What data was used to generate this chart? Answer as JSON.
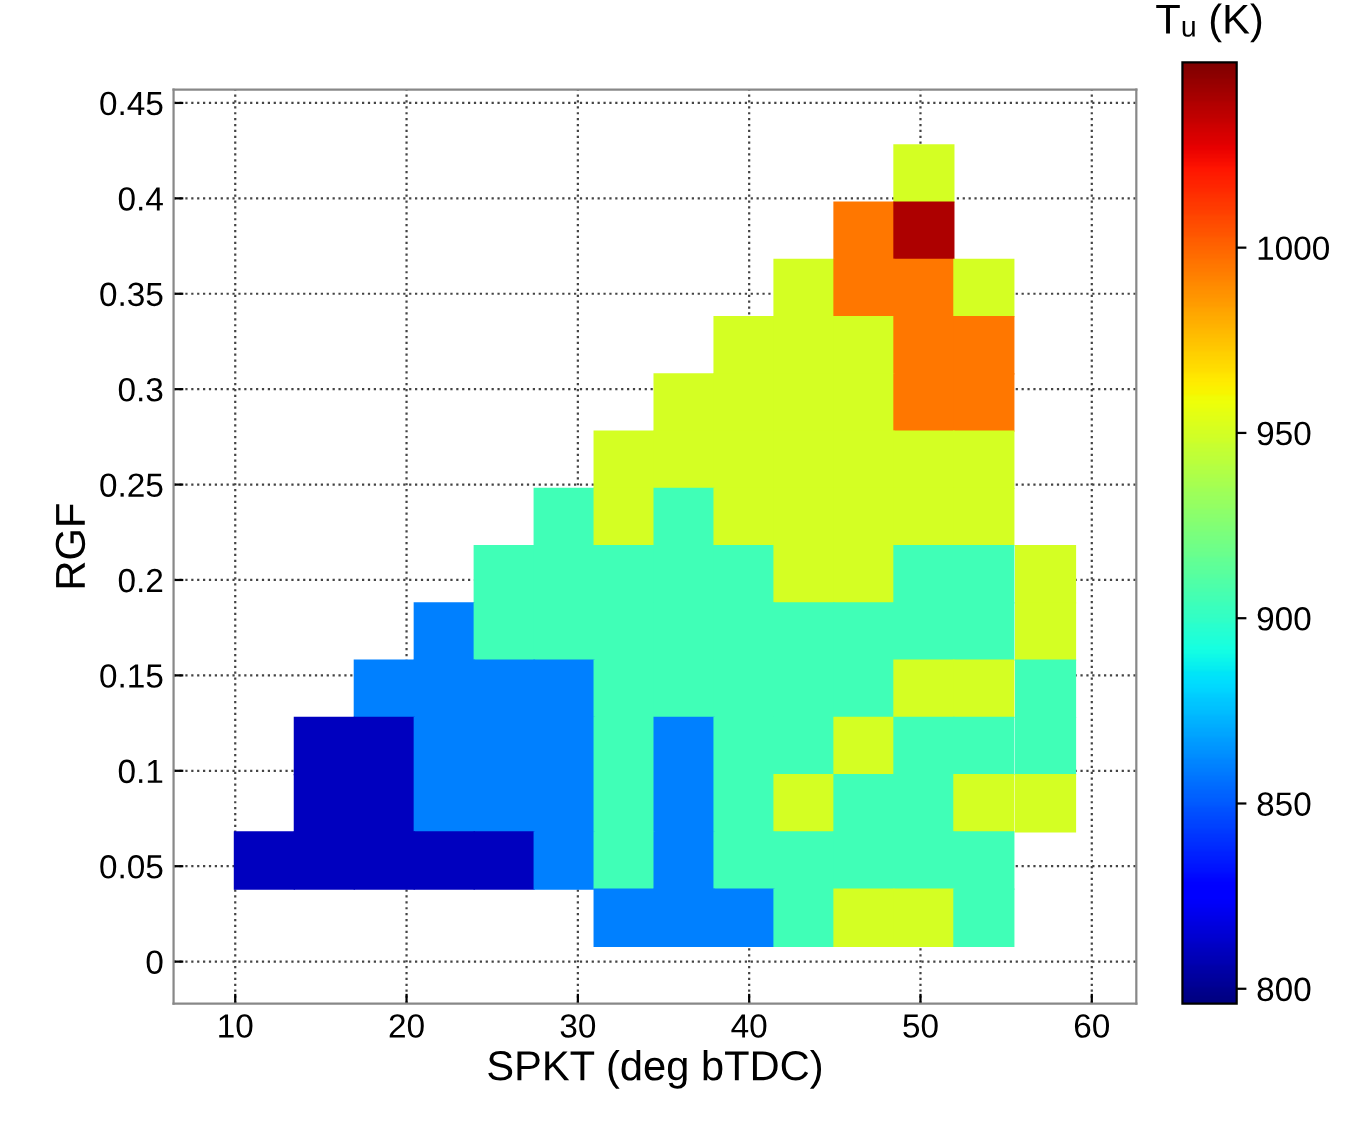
{
  "chart_data": {
    "type": "scatter",
    "xlabel": "SPKT (deg bTDC)",
    "ylabel": "RGF",
    "clabel": "Tᵤ (K)",
    "marker": "square",
    "xlim": [
      6.4,
      62.6
    ],
    "xticks": [
      10,
      20,
      30,
      40,
      50,
      60
    ],
    "ylim": [
      -0.022,
      0.457
    ],
    "yticks": [
      0,
      0.05,
      0.1,
      0.15,
      0.2,
      0.25,
      0.3,
      0.35,
      0.4,
      0.45
    ],
    "clim": [
      796,
      1050
    ],
    "cticks": [
      800,
      850,
      900,
      950,
      1000
    ],
    "grid": true,
    "x": [
      50.2,
      46.7,
      50.2,
      43.2,
      46.7,
      50.2,
      53.7,
      39.7,
      43.2,
      46.7,
      50.2,
      53.7,
      36.2,
      39.7,
      43.2,
      46.7,
      50.2,
      53.7,
      32.7,
      36.2,
      39.7,
      43.2,
      46.7,
      50.2,
      53.7,
      29.2,
      32.7,
      36.2,
      39.7,
      43.2,
      46.7,
      50.2,
      53.7,
      25.7,
      29.2,
      32.7,
      36.2,
      39.7,
      43.2,
      46.7,
      50.2,
      53.7,
      57.3,
      22.2,
      25.7,
      29.2,
      32.7,
      36.2,
      39.7,
      43.2,
      46.7,
      50.2,
      53.7,
      57.3,
      18.7,
      22.2,
      25.7,
      29.2,
      32.7,
      36.2,
      39.7,
      43.2,
      46.7,
      50.2,
      53.7,
      57.3,
      15.2,
      18.7,
      22.2,
      25.7,
      29.2,
      32.7,
      36.2,
      39.7,
      43.2,
      46.7,
      50.2,
      53.7,
      57.3,
      15.2,
      18.7,
      22.2,
      25.7,
      29.2,
      32.7,
      36.2,
      39.7,
      43.2,
      46.7,
      50.2,
      53.7,
      57.3,
      11.7,
      15.2,
      18.7,
      22.2,
      25.7,
      29.2,
      32.7,
      36.2,
      39.7,
      43.2,
      46.7,
      50.2,
      53.7,
      32.7,
      36.2,
      39.7,
      43.2,
      46.7,
      50.2,
      53.7
    ],
    "values": [
      0.413,
      0.383,
      0.383,
      0.353,
      0.353,
      0.353,
      0.353,
      0.323,
      0.323,
      0.323,
      0.323,
      0.323,
      0.293,
      0.293,
      0.293,
      0.293,
      0.293,
      0.293,
      0.263,
      0.263,
      0.263,
      0.263,
      0.263,
      0.263,
      0.263,
      0.233,
      0.233,
      0.233,
      0.233,
      0.233,
      0.233,
      0.233,
      0.233,
      0.203,
      0.203,
      0.203,
      0.203,
      0.203,
      0.203,
      0.203,
      0.203,
      0.203,
      0.203,
      0.173,
      0.173,
      0.173,
      0.173,
      0.173,
      0.173,
      0.173,
      0.173,
      0.173,
      0.173,
      0.173,
      0.143,
      0.143,
      0.143,
      0.143,
      0.143,
      0.143,
      0.143,
      0.143,
      0.143,
      0.143,
      0.143,
      0.143,
      0.113,
      0.113,
      0.113,
      0.113,
      0.113,
      0.113,
      0.113,
      0.113,
      0.113,
      0.113,
      0.113,
      0.113,
      0.113,
      0.083,
      0.083,
      0.083,
      0.083,
      0.083,
      0.083,
      0.083,
      0.083,
      0.083,
      0.083,
      0.083,
      0.083,
      0.083,
      0.053,
      0.053,
      0.053,
      0.053,
      0.053,
      0.053,
      0.053,
      0.053,
      0.053,
      0.053,
      0.053,
      0.053,
      0.053,
      0.023,
      0.023,
      0.023,
      0.023,
      0.023,
      0.023,
      0.023
    ],
    "cvalues": [
      950,
      995,
      1040,
      950,
      995,
      995,
      950,
      950,
      950,
      950,
      995,
      995,
      950,
      950,
      950,
      950,
      995,
      995,
      950,
      950,
      950,
      950,
      950,
      950,
      950,
      905,
      950,
      905,
      950,
      950,
      950,
      950,
      950,
      905,
      905,
      905,
      905,
      905,
      950,
      950,
      905,
      905,
      950,
      860,
      905,
      905,
      905,
      905,
      905,
      905,
      905,
      905,
      905,
      950,
      860,
      860,
      860,
      860,
      905,
      905,
      905,
      905,
      905,
      950,
      950,
      905,
      810,
      810,
      860,
      860,
      860,
      905,
      860,
      905,
      905,
      950,
      905,
      905,
      905,
      810,
      810,
      860,
      860,
      860,
      905,
      860,
      905,
      950,
      905,
      905,
      950,
      950,
      810,
      810,
      810,
      810,
      810,
      860,
      905,
      860,
      905,
      905,
      905,
      905,
      905,
      860,
      860,
      860,
      905,
      950,
      950,
      905
    ]
  }
}
